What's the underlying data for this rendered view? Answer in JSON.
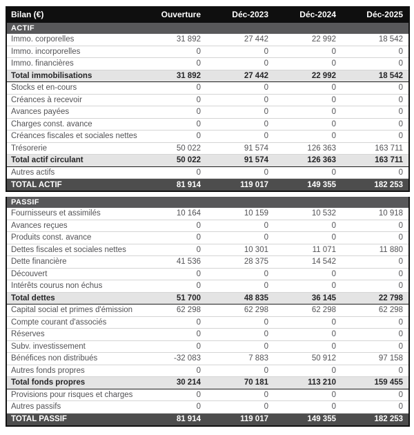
{
  "chart_data": {
    "type": "table",
    "title": "Bilan (€)",
    "columns": [
      "Ouverture",
      "Déc-2023",
      "Déc-2024",
      "Déc-2025"
    ],
    "sections": [
      {
        "name": "ACTIF",
        "rows": [
          {
            "label": "Immo. corporelles",
            "type": "data",
            "values": [
              "31 892",
              "27 442",
              "22 992",
              "18 542"
            ]
          },
          {
            "label": "Immo. incorporelles",
            "type": "data",
            "values": [
              "0",
              "0",
              "0",
              "0"
            ]
          },
          {
            "label": "Immo. financières",
            "type": "data",
            "values": [
              "0",
              "0",
              "0",
              "0"
            ]
          },
          {
            "label": "Total immobilisations",
            "type": "subtotal",
            "values": [
              "31 892",
              "27 442",
              "22 992",
              "18 542"
            ]
          },
          {
            "label": "Stocks et en-cours",
            "type": "data",
            "values": [
              "0",
              "0",
              "0",
              "0"
            ]
          },
          {
            "label": "Créances à recevoir",
            "type": "data",
            "values": [
              "0",
              "0",
              "0",
              "0"
            ]
          },
          {
            "label": "Avances payées",
            "type": "data",
            "values": [
              "0",
              "0",
              "0",
              "0"
            ]
          },
          {
            "label": "Charges const. avance",
            "type": "data",
            "values": [
              "0",
              "0",
              "0",
              "0"
            ]
          },
          {
            "label": "Créances fiscales et sociales nettes",
            "type": "data",
            "values": [
              "0",
              "0",
              "0",
              "0"
            ]
          },
          {
            "label": "Trésorerie",
            "type": "data",
            "values": [
              "50 022",
              "91 574",
              "126 363",
              "163 711"
            ]
          },
          {
            "label": "Total actif circulant",
            "type": "subtotal",
            "values": [
              "50 022",
              "91 574",
              "126 363",
              "163 711"
            ]
          },
          {
            "label": "Autres actifs",
            "type": "data",
            "values": [
              "0",
              "0",
              "0",
              "0"
            ]
          }
        ],
        "total": {
          "label": "TOTAL ACTIF",
          "values": [
            "81 914",
            "119 017",
            "149 355",
            "182 253"
          ]
        }
      },
      {
        "name": "PASSIF",
        "rows": [
          {
            "label": "Fournisseurs et assimilés",
            "type": "data",
            "values": [
              "10 164",
              "10 159",
              "10 532",
              "10 918"
            ]
          },
          {
            "label": "Avances reçues",
            "type": "data",
            "values": [
              "0",
              "0",
              "0",
              "0"
            ]
          },
          {
            "label": "Produits const. avance",
            "type": "data",
            "values": [
              "0",
              "0",
              "0",
              "0"
            ]
          },
          {
            "label": "Dettes fiscales et sociales nettes",
            "type": "data",
            "values": [
              "0",
              "10 301",
              "11 071",
              "11 880"
            ]
          },
          {
            "label": "Dette financière",
            "type": "data",
            "values": [
              "41 536",
              "28 375",
              "14 542",
              "0"
            ]
          },
          {
            "label": "Découvert",
            "type": "data",
            "values": [
              "0",
              "0",
              "0",
              "0"
            ]
          },
          {
            "label": "Intérêts courus non échus",
            "type": "data",
            "values": [
              "0",
              "0",
              "0",
              "0"
            ]
          },
          {
            "label": "Total dettes",
            "type": "subtotal",
            "values": [
              "51 700",
              "48 835",
              "36 145",
              "22 798"
            ]
          },
          {
            "label": "Capital social et primes d'émission",
            "type": "data",
            "values": [
              "62 298",
              "62 298",
              "62 298",
              "62 298"
            ]
          },
          {
            "label": "Compte courant d'associés",
            "type": "data",
            "values": [
              "0",
              "0",
              "0",
              "0"
            ]
          },
          {
            "label": "Réserves",
            "type": "data",
            "values": [
              "0",
              "0",
              "0",
              "0"
            ]
          },
          {
            "label": "Subv. investissement",
            "type": "data",
            "values": [
              "0",
              "0",
              "0",
              "0"
            ]
          },
          {
            "label": "Bénéfices non distribués",
            "type": "data",
            "values": [
              "-32 083",
              "7 883",
              "50 912",
              "97 158"
            ]
          },
          {
            "label": "Autres fonds propres",
            "type": "data",
            "values": [
              "0",
              "0",
              "0",
              "0"
            ]
          },
          {
            "label": "Total fonds propres",
            "type": "subtotal",
            "values": [
              "30 214",
              "70 181",
              "113 210",
              "159 455"
            ]
          },
          {
            "label": "Provisions pour risques et charges",
            "type": "data",
            "values": [
              "0",
              "0",
              "0",
              "0"
            ]
          },
          {
            "label": "Autres passifs",
            "type": "data",
            "values": [
              "0",
              "0",
              "0",
              "0"
            ]
          }
        ],
        "total": {
          "label": "TOTAL PASSIF",
          "values": [
            "81 914",
            "119 017",
            "149 355",
            "182 253"
          ]
        }
      }
    ]
  }
}
